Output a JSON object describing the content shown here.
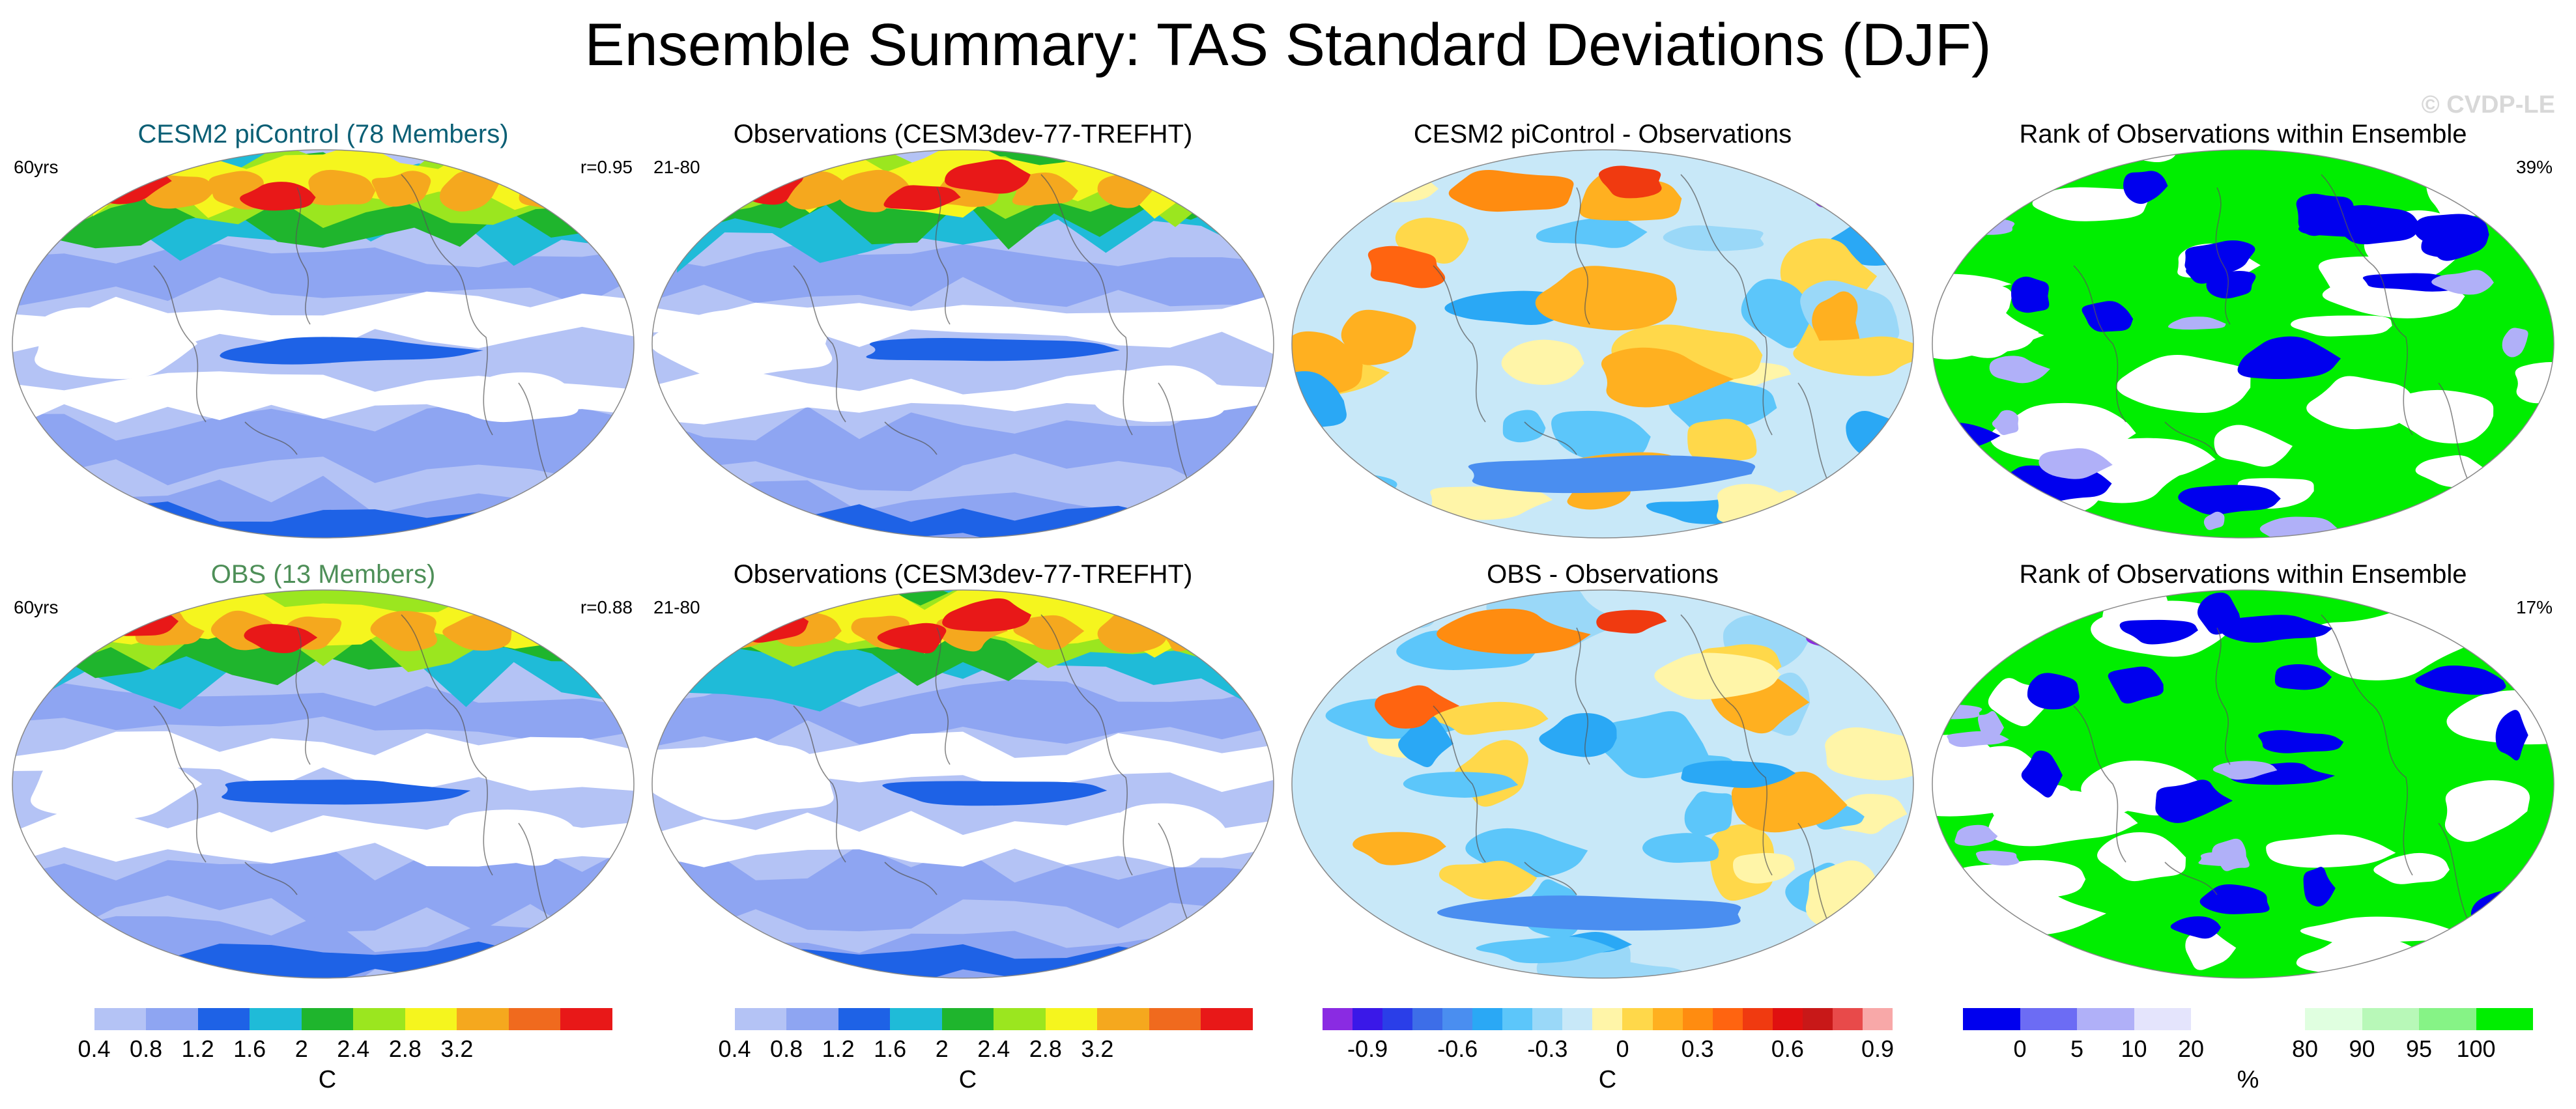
{
  "figure": {
    "title": "Ensemble Summary: TAS Standard Deviations (DJF)",
    "watermark": "© CVDP-LE"
  },
  "chart_data": [
    {
      "type": "heatmap",
      "title": "CESM2 piControl (78 Members)",
      "title_color": "#0b5f75",
      "left_label": "60yrs",
      "right_label": "r=0.95",
      "scheme": "std",
      "colorbar": "std"
    },
    {
      "type": "heatmap",
      "title": "Observations (CESM3dev-77-TREFHT)",
      "title_color": "#000000",
      "left_label": "21-80",
      "right_label": "",
      "scheme": "std",
      "colorbar": "std"
    },
    {
      "type": "heatmap",
      "title": "CESM2 piControl - Observations",
      "title_color": "#000000",
      "left_label": "",
      "right_label": "",
      "scheme": "diff",
      "colorbar": "diff"
    },
    {
      "type": "heatmap",
      "title": "Rank of Observations within Ensemble",
      "title_color": "#000000",
      "left_label": "",
      "right_label": "39%",
      "scheme": "rank",
      "colorbar": "rank"
    },
    {
      "type": "heatmap",
      "title": "OBS (13 Members)",
      "title_color": "#4e8f58",
      "left_label": "60yrs",
      "right_label": "r=0.88",
      "scheme": "std"
    },
    {
      "type": "heatmap",
      "title": "Observations (CESM3dev-77-TREFHT)",
      "title_color": "#000000",
      "left_label": "21-80",
      "right_label": "",
      "scheme": "std"
    },
    {
      "type": "heatmap",
      "title": "OBS - Observations",
      "title_color": "#000000",
      "left_label": "",
      "right_label": "",
      "scheme": "diff"
    },
    {
      "type": "heatmap",
      "title": "Rank of Observations within Ensemble",
      "title_color": "#000000",
      "left_label": "",
      "right_label": "17%",
      "scheme": "rank"
    }
  ],
  "colorbars": {
    "std": {
      "unit": "C",
      "colors": [
        "#ffffff",
        "#b4c3f5",
        "#8ea5f2",
        "#1e62e6",
        "#1fbbd8",
        "#1fb52d",
        "#9be61f",
        "#f5f51e",
        "#f5a81e",
        "#f06a1e",
        "#e81818"
      ],
      "labels": [
        "0.4",
        "0.8",
        "1.2",
        "1.6",
        "2",
        "2.4",
        "2.8",
        "3.2"
      ],
      "label_boundaries": [
        1,
        2,
        3,
        4,
        5,
        6,
        7,
        8
      ]
    },
    "diff": {
      "unit": "C",
      "colors": [
        "#8a2be2",
        "#3a18e8",
        "#2a3ee8",
        "#3d6ee8",
        "#4a8ef0",
        "#2aa8f5",
        "#5cc6fa",
        "#9ad8f8",
        "#c8e8f8",
        "#fff5a8",
        "#ffd84a",
        "#ffb020",
        "#ff8c10",
        "#ff6410",
        "#f03a10",
        "#e01010",
        "#c81818",
        "#e84a4a",
        "#f8a8a8"
      ],
      "labels": [
        "-0.9",
        "-0.6",
        "-0.3",
        "0",
        "0.3",
        "0.6",
        "0.9"
      ],
      "label_boundaries": [
        1.5,
        4.5,
        7.5,
        10,
        12.5,
        15.5,
        18.5
      ]
    },
    "rank": {
      "unit": "%",
      "colors": [
        "#0000ee",
        "#6c6cf4",
        "#b0b0f8",
        "#e4e4fc",
        "#ffffff",
        "#ffffff",
        "#e0ffe0",
        "#b8f8b8",
        "#86f386",
        "#00ee00"
      ],
      "labels": [
        "0",
        "5",
        "10",
        "20",
        "80",
        "90",
        "95",
        "100"
      ],
      "label_boundaries": [
        1,
        2,
        3,
        4,
        6,
        7,
        8,
        9
      ]
    }
  }
}
